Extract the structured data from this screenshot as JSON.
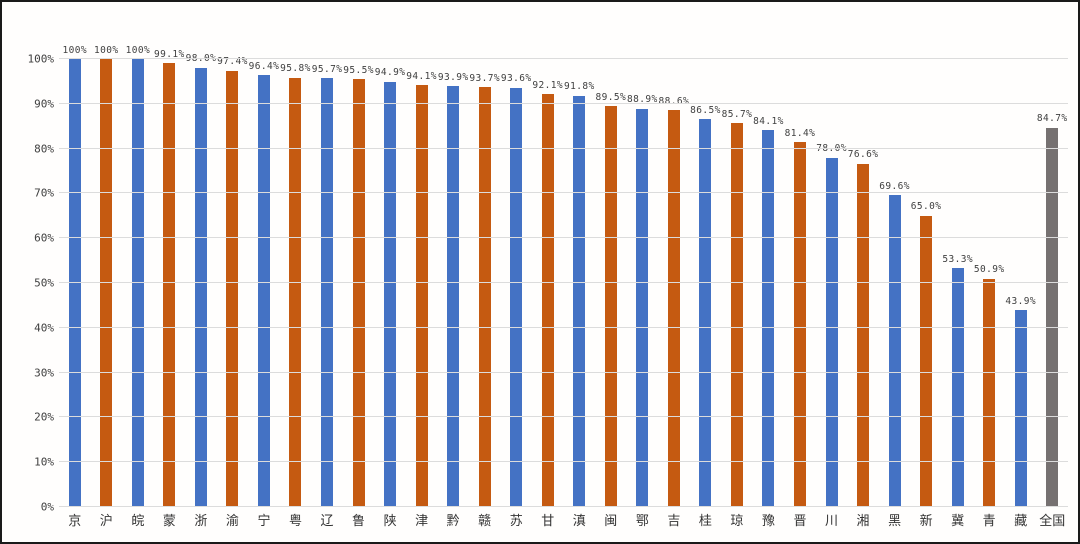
{
  "chart_data": {
    "type": "bar",
    "title": "",
    "xlabel": "",
    "ylabel": "",
    "categories": [
      "京",
      "沪",
      "皖",
      "蒙",
      "浙",
      "渝",
      "宁",
      "粤",
      "辽",
      "鲁",
      "陕",
      "津",
      "黔",
      "赣",
      "苏",
      "甘",
      "滇",
      "闽",
      "鄂",
      "吉",
      "桂",
      "琼",
      "豫",
      "晋",
      "川",
      "湘",
      "黑",
      "新",
      "冀",
      "青",
      "藏",
      "全国"
    ],
    "values": [
      100,
      100,
      100,
      99.1,
      98.0,
      97.4,
      96.4,
      95.8,
      95.7,
      95.5,
      94.9,
      94.1,
      93.9,
      93.7,
      93.6,
      92.1,
      91.8,
      89.5,
      88.9,
      88.6,
      86.5,
      85.7,
      84.1,
      81.4,
      78.0,
      76.6,
      69.6,
      65.0,
      53.3,
      50.9,
      43.9,
      84.7
    ],
    "value_labels": [
      "100%",
      "100%",
      "100%",
      "99.1%",
      "98.0%",
      "97.4%",
      "96.4%",
      "95.8%",
      "95.7%",
      "95.5%",
      "94.9%",
      "94.1%",
      "93.9%",
      "93.7%",
      "93.6%",
      "92.1%",
      "91.8%",
      "89.5%",
      "88.9%",
      "88.6%",
      "86.5%",
      "85.7%",
      "84.1%",
      "81.4%",
      "78.0%",
      "76.6%",
      "69.6%",
      "65.0%",
      "53.3%",
      "50.9%",
      "43.9%",
      "84.7%"
    ],
    "bar_color_keys": [
      "blue",
      "orange",
      "blue",
      "orange",
      "blue",
      "orange",
      "blue",
      "orange",
      "blue",
      "orange",
      "blue",
      "orange",
      "blue",
      "orange",
      "blue",
      "orange",
      "blue",
      "orange",
      "blue",
      "orange",
      "blue",
      "orange",
      "blue",
      "orange",
      "blue",
      "orange",
      "blue",
      "orange",
      "blue",
      "orange",
      "blue",
      "gray"
    ],
    "palette": {
      "blue": "#4472C4",
      "orange": "#C55A11",
      "gray": "#767171"
    },
    "y_ticks": [
      "0%",
      "10%",
      "20%",
      "30%",
      "40%",
      "50%",
      "60%",
      "70%",
      "80%",
      "90%",
      "100%"
    ],
    "ylim": [
      0,
      100
    ],
    "grid": true,
    "legend": false,
    "gridline_color": "#dcdcdc",
    "data_label_color": "#404040",
    "axis_text_color": "#404040"
  }
}
